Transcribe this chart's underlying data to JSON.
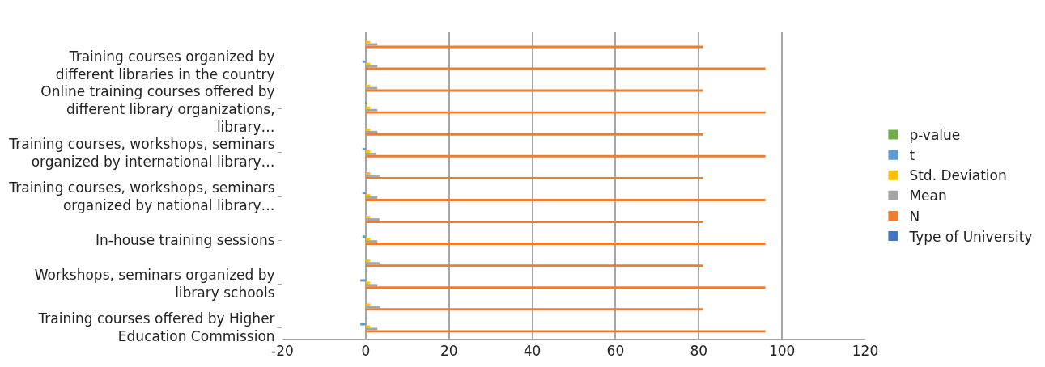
{
  "chart_data": {
    "type": "bar",
    "orientation": "horizontal",
    "categories": [
      null,
      "Training courses organized by different libraries in the country",
      null,
      "Online training courses offered by different library organizations, library…",
      null,
      "Training courses, workshops, seminars organized by international library…",
      null,
      "Training courses, workshops, seminars organized by national library…",
      null,
      "In-house training sessions",
      null,
      "Workshops, seminars organized by library schools",
      null,
      "Training courses offered by Higher Education Commission"
    ],
    "series": [
      {
        "name": "p-value",
        "color": "#70ad47",
        "values": [
          null,
          null,
          null,
          0.3,
          null,
          null,
          null,
          null,
          null,
          null,
          null,
          null,
          null,
          null
        ]
      },
      {
        "name": "t",
        "color": "#5b9bd5",
        "values": [
          null,
          -0.8,
          null,
          null,
          null,
          -0.8,
          null,
          -0.8,
          null,
          -0.8,
          null,
          -1.3,
          null,
          -1.3
        ]
      },
      {
        "name": "Std. Deviation",
        "color": "#ffc000",
        "values": [
          1.0,
          1.0,
          1.0,
          1.0,
          1.0,
          1.0,
          1.0,
          1.0,
          1.0,
          1.0,
          1.0,
          1.0,
          1.0,
          1.0
        ]
      },
      {
        "name": "Mean",
        "color": "#a5a5a5",
        "values": [
          2.8,
          2.8,
          2.8,
          2.8,
          2.8,
          2.4,
          3.3,
          2.8,
          3.3,
          2.8,
          3.3,
          2.8,
          3.3,
          2.8
        ]
      },
      {
        "name": "N",
        "color": "#ed7d31",
        "values": [
          81,
          96,
          81,
          96,
          81,
          96,
          81,
          96,
          81,
          96,
          81,
          96,
          81,
          96
        ]
      },
      {
        "name": "Type of University",
        "color": "#4472c4",
        "values": [
          null,
          null,
          null,
          null,
          null,
          null,
          null,
          null,
          null,
          null,
          null,
          null,
          null,
          null
        ]
      }
    ],
    "xlim": [
      -20,
      120
    ],
    "xticks": [
      -20,
      0,
      20,
      40,
      60,
      80,
      100,
      120
    ],
    "grid": "x",
    "legend": "right"
  }
}
